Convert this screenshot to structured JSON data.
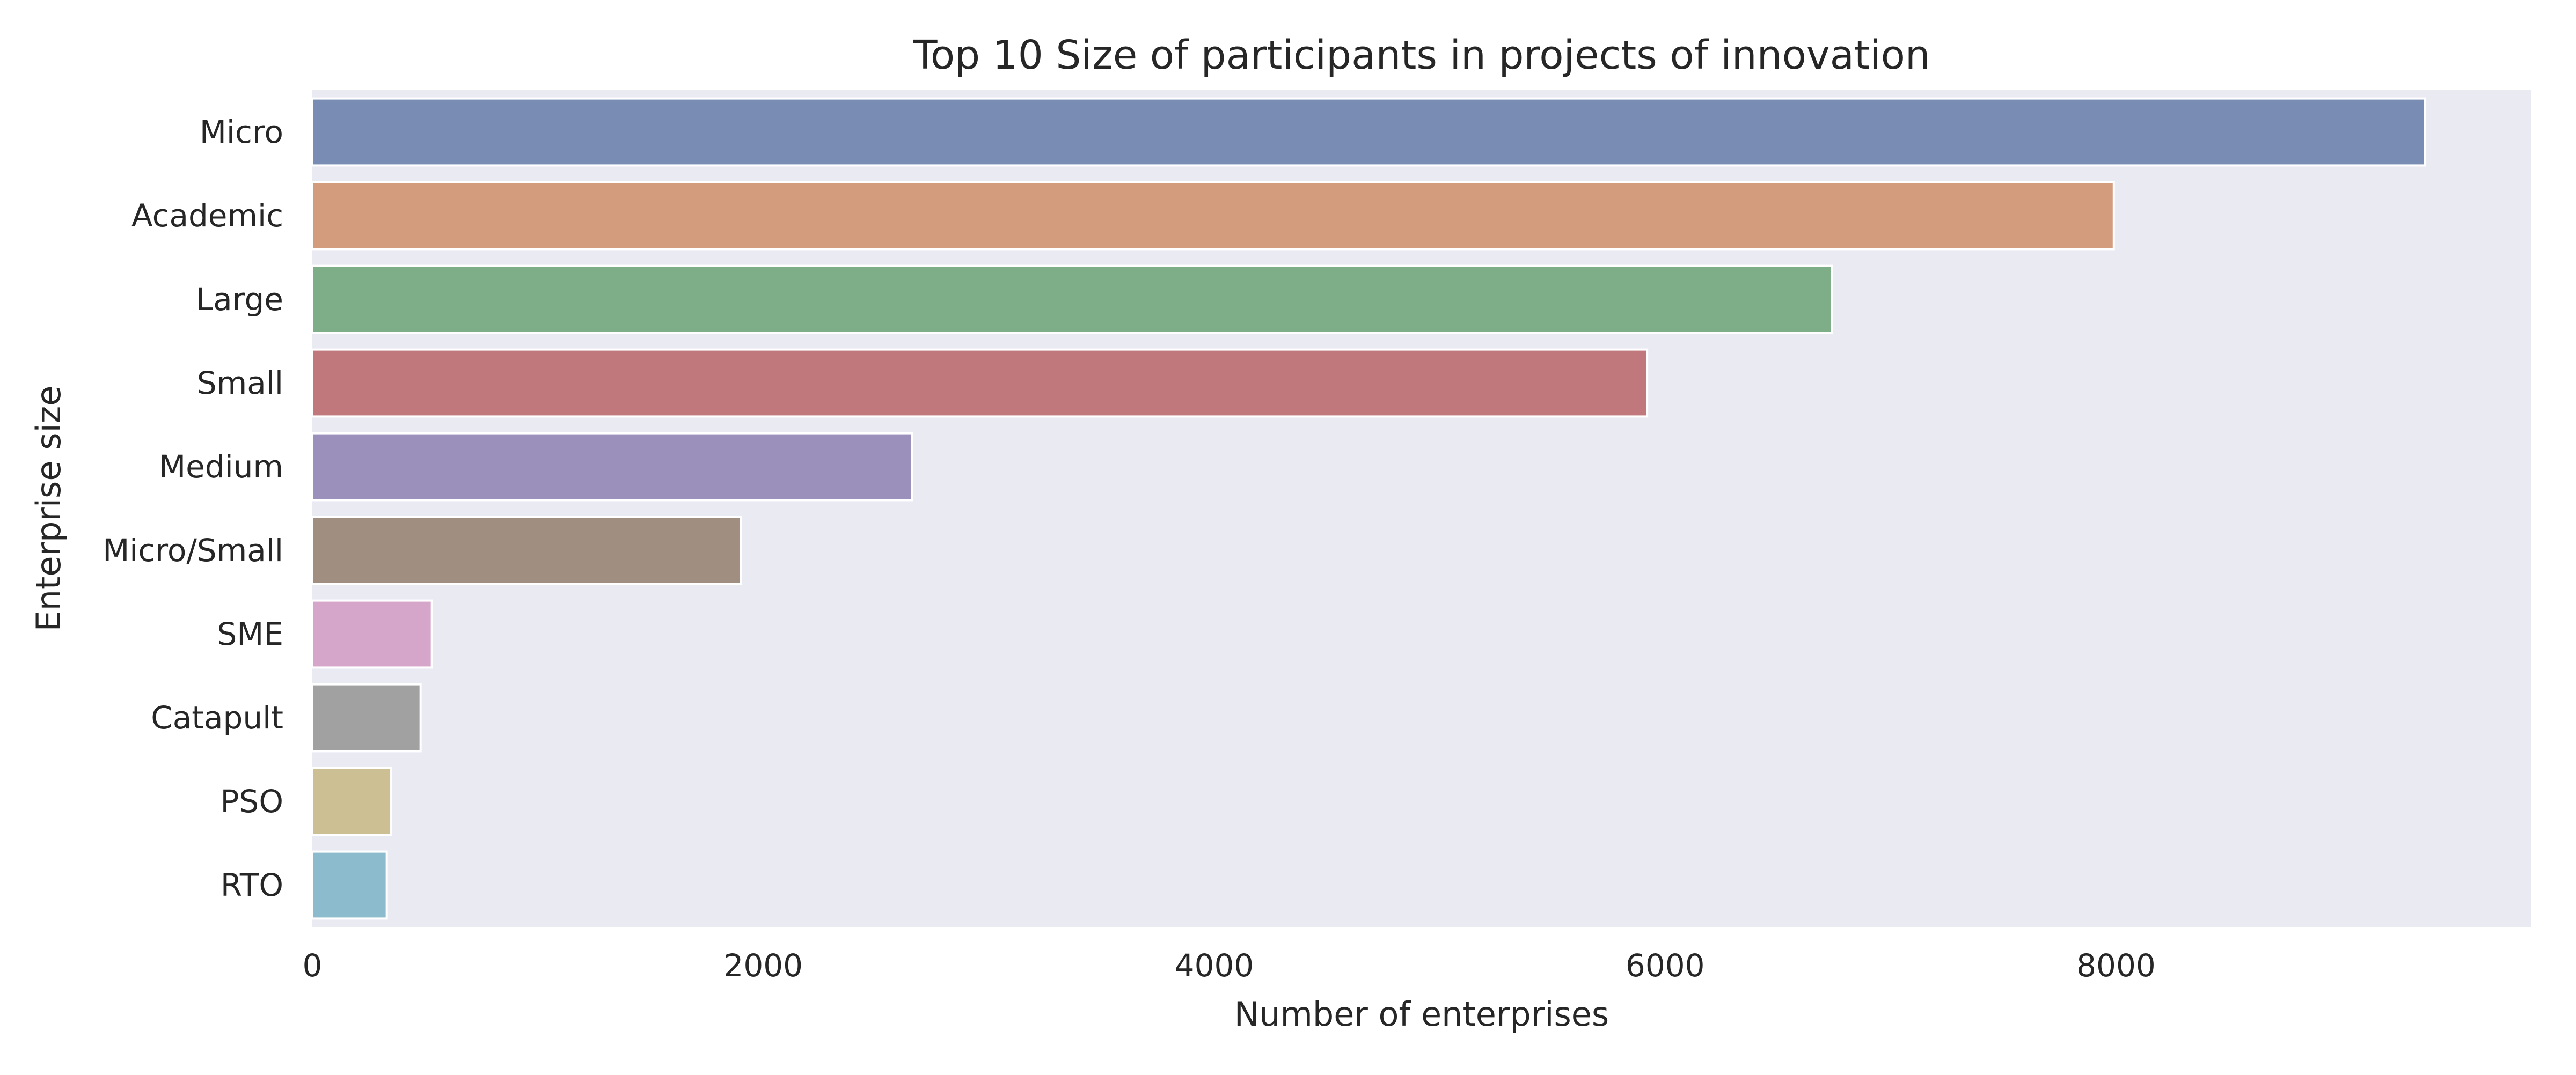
{
  "chart_data": {
    "type": "bar",
    "orientation": "horizontal",
    "title": "Top 10 Size of participants in projects of innovation",
    "xlabel": "Number of enterprises",
    "ylabel": "Enterprise size",
    "categories": [
      "Micro",
      "Academic",
      "Large",
      "Small",
      "Medium",
      "Micro/Small",
      "SME",
      "Catapult",
      "PSO",
      "RTO"
    ],
    "values": [
      9370,
      7990,
      6740,
      5920,
      2660,
      1900,
      530,
      480,
      350,
      330
    ],
    "xlim": [
      0,
      9840
    ],
    "xticks": [
      0,
      2000,
      4000,
      6000,
      8000
    ],
    "xtick_labels": [
      "0",
      "2000",
      "4000",
      "6000",
      "8000"
    ],
    "grid": false,
    "colors": [
      "#788cb4",
      "#d39c7d",
      "#7eae88",
      "#c0787c",
      "#9b90bb",
      "#a08e80",
      "#d6a5ca",
      "#a1a1a1",
      "#ccbf94",
      "#8bbbcc"
    ],
    "background": "#eaeaf2"
  }
}
